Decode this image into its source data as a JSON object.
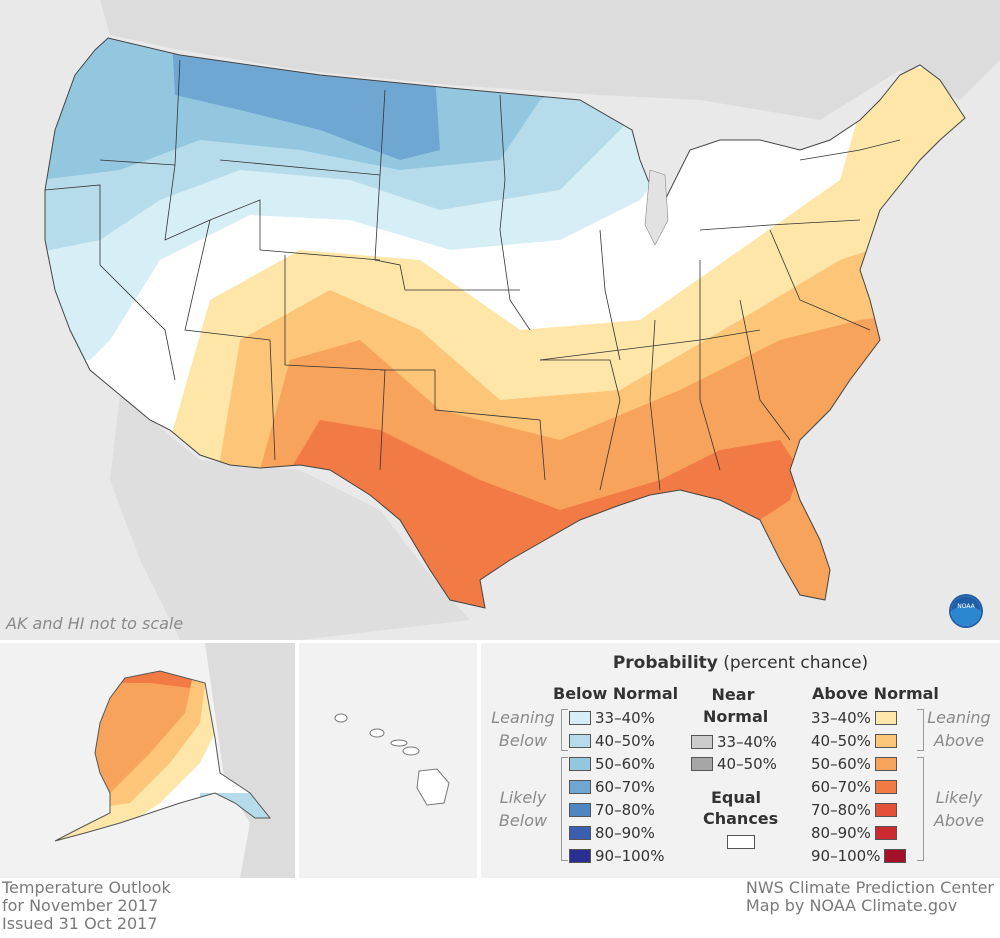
{
  "map": {
    "scale_note": "AK and HI not to scale",
    "logo_text": "NOAA"
  },
  "legend": {
    "title_bold": "Probability",
    "title_rest": " (percent chance)",
    "below": {
      "heading": "Below Normal",
      "leaning_label": [
        "Leaning",
        "Below"
      ],
      "likely_label": [
        "Likely",
        "Below"
      ],
      "items": [
        {
          "label": "33–40%",
          "color": "#d6eef6"
        },
        {
          "label": "40–50%",
          "color": "#b6dceb"
        },
        {
          "label": "50–60%",
          "color": "#93c6df"
        },
        {
          "label": "60–70%",
          "color": "#6fa7d2"
        },
        {
          "label": "70–80%",
          "color": "#4e86c2"
        },
        {
          "label": "80–90%",
          "color": "#3a5fb0"
        },
        {
          "label": "90–100%",
          "color": "#2b2f8f"
        }
      ]
    },
    "near": {
      "heading": [
        "Near",
        "Normal"
      ],
      "items": [
        {
          "label": "33–40%",
          "color": "#cccccc"
        },
        {
          "label": "40–50%",
          "color": "#a6a6a6"
        }
      ],
      "equal_heading": [
        "Equal",
        "Chances"
      ],
      "equal_color": "#ffffff"
    },
    "above": {
      "heading": "Above Normal",
      "leaning_label": [
        "Leaning",
        "Above"
      ],
      "likely_label": [
        "Likely",
        "Above"
      ],
      "items": [
        {
          "label": "33–40%",
          "color": "#fde6a8"
        },
        {
          "label": "40–50%",
          "color": "#fcc577"
        },
        {
          "label": "50–60%",
          "color": "#f7a35c"
        },
        {
          "label": "60–70%",
          "color": "#f27a45"
        },
        {
          "label": "70–80%",
          "color": "#e4503a"
        },
        {
          "label": "80–90%",
          "color": "#cc2a30"
        },
        {
          "label": "90–100%",
          "color": "#a6102a"
        }
      ]
    }
  },
  "footer": {
    "left": [
      "Temperature Outlook",
      "for November 2017",
      "Issued 31 Oct 2017"
    ],
    "right": [
      "NWS Climate Prediction Center",
      "Map by NOAA Climate.gov"
    ]
  }
}
